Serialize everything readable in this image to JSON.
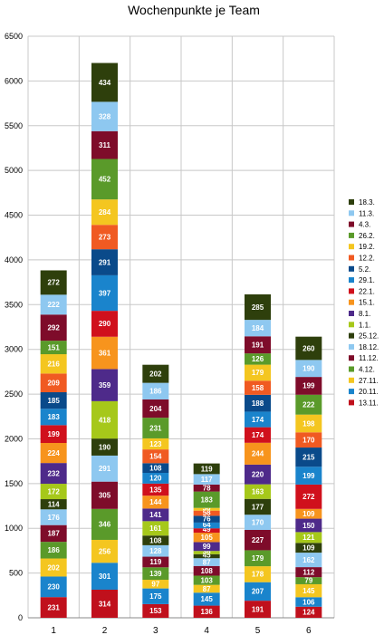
{
  "chart_data": {
    "type": "bar",
    "stacked": true,
    "title": "Wochenpunkte je Team",
    "xlabel": "",
    "ylabel": "",
    "ylim": [
      0,
      6500
    ],
    "yticks": [
      0,
      500,
      1000,
      1500,
      2000,
      2500,
      3000,
      3500,
      4000,
      4500,
      5000,
      5500,
      6000,
      6500
    ],
    "grid": true,
    "legend_position": "right",
    "categories": [
      "1",
      "2",
      "3",
      "4",
      "5",
      "6"
    ],
    "series": [
      {
        "name": "13.11.",
        "color": "#c0101c",
        "values": [
          231,
          314,
          153,
          136,
          191,
          124
        ]
      },
      {
        "name": "20.11.",
        "color": "#1a84cc",
        "values": [
          230,
          301,
          175,
          145,
          207,
          106
        ]
      },
      {
        "name": "27.11.",
        "color": "#f4c620",
        "values": [
          202,
          256,
          97,
          87,
          178,
          145
        ]
      },
      {
        "name": "4.12.",
        "color": "#5a9a2a",
        "values": [
          186,
          346,
          139,
          103,
          179,
          79
        ]
      },
      {
        "name": "11.12.",
        "color": "#7e0c2a",
        "values": [
          187,
          305,
          119,
          108,
          227,
          112
        ]
      },
      {
        "name": "18.12.",
        "color": "#8ec8f0",
        "values": [
          176,
          291,
          128,
          87,
          170,
          162
        ]
      },
      {
        "name": "25.12.",
        "color": "#2e3f0c",
        "values": [
          114,
          190,
          108,
          45,
          177,
          109
        ]
      },
      {
        "name": "1.1.",
        "color": "#a6c81a",
        "values": [
          172,
          418,
          161,
          36,
          163,
          121
        ]
      },
      {
        "name": "8.1.",
        "color": "#4e2a8a",
        "values": [
          232,
          359,
          141,
          99,
          220,
          150
        ]
      },
      {
        "name": "15.1.",
        "color": "#f7941d",
        "values": [
          224,
          361,
          144,
          105,
          244,
          109
        ]
      },
      {
        "name": "22.1.",
        "color": "#d0101c",
        "values": [
          199,
          290,
          135,
          49,
          174,
          272
        ]
      },
      {
        "name": "29.1.",
        "color": "#1a84cc",
        "values": [
          183,
          397,
          120,
          64,
          174,
          199
        ]
      },
      {
        "name": "5.2.",
        "color": "#0a4a8a",
        "values": [
          185,
          291,
          108,
          76,
          188,
          215
        ]
      },
      {
        "name": "12.2.",
        "color": "#f05a22",
        "values": [
          209,
          273,
          154,
          58,
          158,
          170
        ]
      },
      {
        "name": "19.2.",
        "color": "#f4c620",
        "values": [
          216,
          284,
          123,
          30,
          179,
          198
        ]
      },
      {
        "name": "26.2.",
        "color": "#5a9a2a",
        "values": [
          151,
          452,
          231,
          183,
          126,
          222
        ]
      },
      {
        "name": "4.3.",
        "color": "#7e0c2a",
        "values": [
          292,
          311,
          204,
          78,
          191,
          199
        ]
      },
      {
        "name": "11.3.",
        "color": "#8ec8f0",
        "values": [
          222,
          328,
          186,
          117,
          184,
          190
        ]
      },
      {
        "name": "18.3.",
        "color": "#2e3f0c",
        "values": [
          272,
          434,
          202,
          119,
          285,
          260
        ]
      }
    ]
  }
}
